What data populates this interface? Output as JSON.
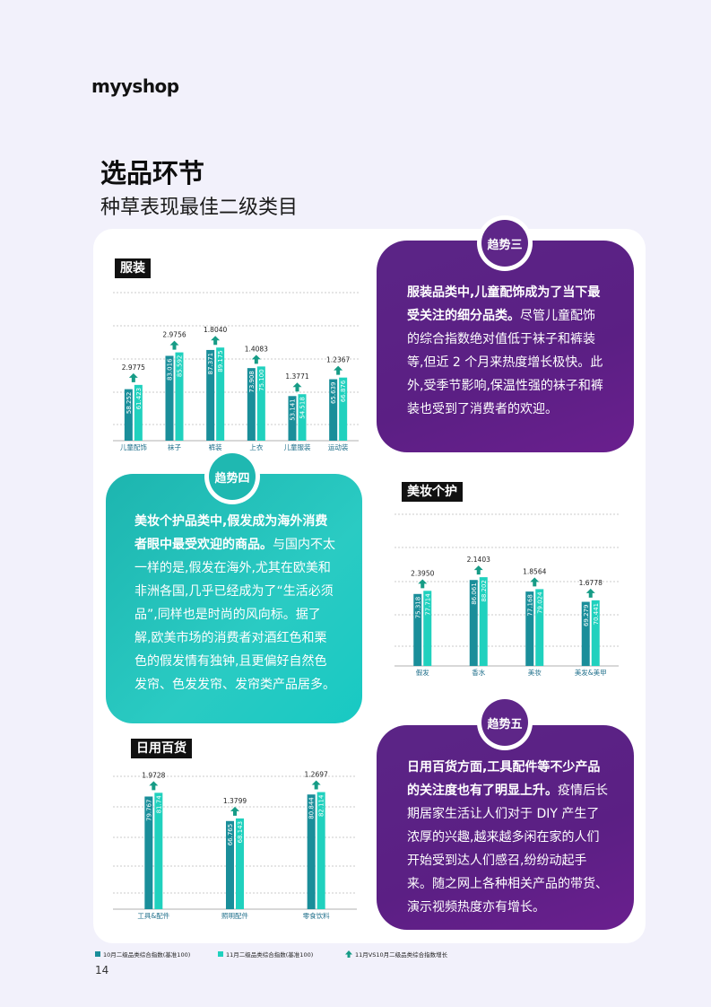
{
  "logo": "myyshop",
  "page": {
    "title": "选品环节",
    "subtitle": "种草表现最佳二级类目",
    "page_number": "14"
  },
  "colors": {
    "oct": "#1A8E9A",
    "nov": "#20D1BE",
    "arrow": "#169C86",
    "purple": "#5B2586",
    "teal": "#23BFB8"
  },
  "charts": {
    "clothing": {
      "title": "服装",
      "categories": [
        "儿童配饰",
        "袜子",
        "裤装",
        "上衣",
        "儿童服装",
        "运动装"
      ],
      "oct": [
        "58.252",
        "83.016",
        "87.371",
        "73.908",
        "53.141",
        "65.639"
      ],
      "nov": [
        "61.423",
        "85.592",
        "89.175",
        "75.100",
        "54.518",
        "66.876"
      ],
      "growth": [
        "2.9775",
        "2.9756",
        "1.8040",
        "1.4083",
        "1.3771",
        "1.2367"
      ]
    },
    "beauty": {
      "title": "美妆个护",
      "categories": [
        "假发",
        "香水",
        "美妆",
        "美发&美甲"
      ],
      "oct": [
        "75.318",
        "86.061",
        "77.168",
        "69.279"
      ],
      "nov": [
        "77.714",
        "88.202",
        "79.024",
        "70.441"
      ],
      "growth": [
        "2.3950",
        "2.1403",
        "1.8564",
        "1.6778"
      ]
    },
    "daily": {
      "title": "日用百货",
      "categories": [
        "工具&配件",
        "照明配件",
        "零食饮料"
      ],
      "oct": [
        "79.767",
        "66.765",
        "80.844"
      ],
      "nov": [
        "81.74",
        "68.143",
        "82.114"
      ],
      "growth": [
        "1.9728",
        "1.3799",
        "1.2697"
      ]
    }
  },
  "chart_data": [
    {
      "type": "bar",
      "title": "服装",
      "categories": [
        "儿童配饰",
        "袜子",
        "裤装",
        "上衣",
        "儿童服装",
        "运动装"
      ],
      "series": [
        {
          "name": "10月二级品类综合指数(基准100)",
          "values": [
            58.252,
            83.016,
            87.371,
            73.908,
            53.141,
            65.639
          ]
        },
        {
          "name": "11月二级品类综合指数(基准100)",
          "values": [
            61.423,
            85.592,
            89.175,
            75.1,
            54.518,
            66.876
          ]
        },
        {
          "name": "11月VS10月二级品类综合指数增长",
          "values": [
            2.9775,
            2.9756,
            1.804,
            1.4083,
            1.3771,
            1.2367
          ]
        }
      ]
    },
    {
      "type": "bar",
      "title": "美妆个护",
      "categories": [
        "假发",
        "香水",
        "美妆",
        "美发&美甲"
      ],
      "series": [
        {
          "name": "10月二级品类综合指数(基准100)",
          "values": [
            75.318,
            86.061,
            77.168,
            69.279
          ]
        },
        {
          "name": "11月二级品类综合指数(基准100)",
          "values": [
            77.714,
            88.202,
            79.024,
            70.441
          ]
        },
        {
          "name": "11月VS10月二级品类综合指数增长",
          "values": [
            2.395,
            2.1403,
            1.8564,
            1.6778
          ]
        }
      ]
    },
    {
      "type": "bar",
      "title": "日用百货",
      "categories": [
        "工具&配件",
        "照明配件",
        "零食饮料"
      ],
      "series": [
        {
          "name": "10月二级品类综合指数(基准100)",
          "values": [
            79.767,
            66.765,
            80.844
          ]
        },
        {
          "name": "11月二级品类综合指数(基准100)",
          "values": [
            81.74,
            68.143,
            82.114
          ]
        },
        {
          "name": "11月VS10月二级品类综合指数增长",
          "values": [
            1.9728,
            1.3799,
            1.2697
          ]
        }
      ]
    }
  ],
  "trends": {
    "three": {
      "badge": "趋势三",
      "bold": "服装品类中,儿童配饰成为了当下最受关注的细分品类。",
      "text": "尽管儿童配饰的综合指数绝对值低于袜子和裤装等,但近 2 个月来热度增长极快。此外,受季节影响,保温性强的袜子和裤装也受到了消费者的欢迎。"
    },
    "four": {
      "badge": "趋势四",
      "bold": "美妆个护品类中,假发成为海外消费者眼中最受欢迎的商品。",
      "text": "与国内不太一样的是,假发在海外,尤其在欧美和非洲各国,几乎已经成为了“生活必须品”,同样也是时尚的风向标。据了解,欧美市场的消费者对酒红色和栗色的假发情有独钟,且更偏好自然色发帘、色发发帘、发帘类产品居多。"
    },
    "five": {
      "badge": "趋势五",
      "bold": "日用百货方面,工具配件等不少产品的关注度也有了明显上升。",
      "text": "疫情后长期居家生活让人们对于 DIY 产生了浓厚的兴趣,越来越多闲在家的人们开始受到达人们感召,纷纷动起手来。随之网上各种相关产品的带货、演示视频热度亦有增长。"
    }
  },
  "legend": {
    "oct": "10月二级品类综合指数(基准100)",
    "nov": "11月二级品类综合指数(基准100)",
    "growth": "11月VS10月二级品类综合指数增长"
  }
}
